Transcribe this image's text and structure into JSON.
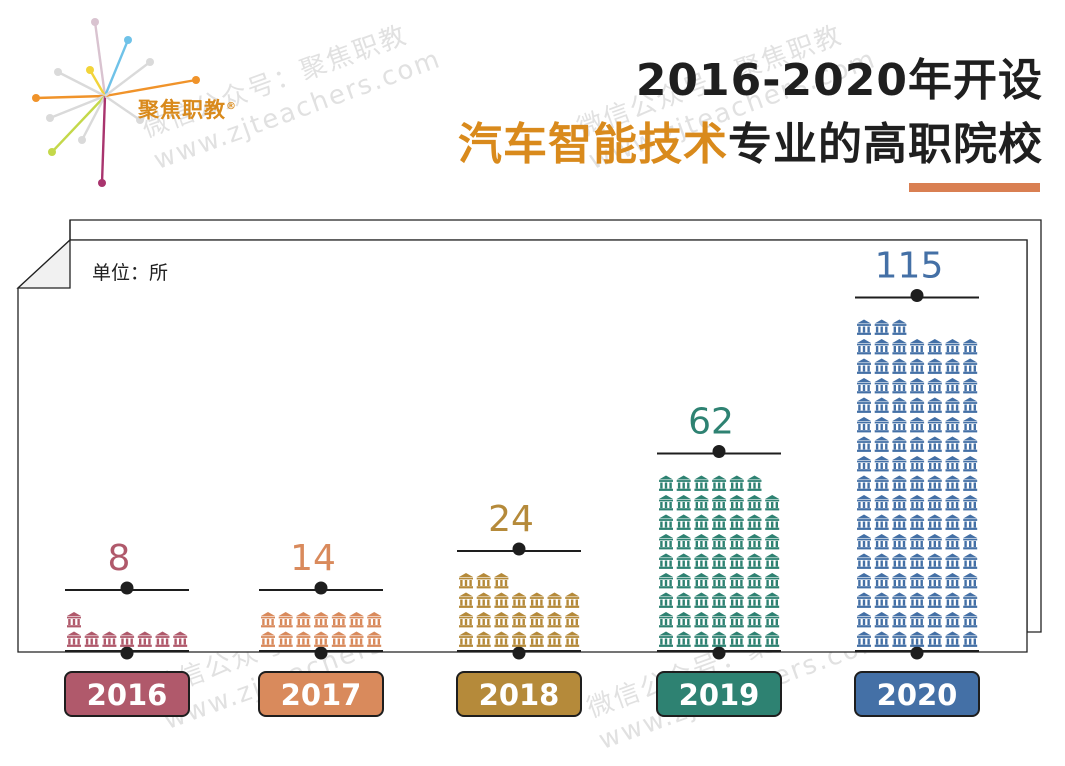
{
  "header": {
    "logo_text": "聚焦职教",
    "logo_mark": "®",
    "title_line1": "2016-2020年开设",
    "title_line2_highlight": "汽车智能技术",
    "title_line2_rest": "专业的高职院校"
  },
  "watermark": {
    "line1": "微信公众号：聚焦职教",
    "line2": "www.zjteachers.com"
  },
  "chart_data": {
    "type": "bar",
    "unit_label": "单位：所",
    "categories": [
      "2016",
      "2017",
      "2018",
      "2019",
      "2020"
    ],
    "values": [
      8,
      14,
      24,
      62,
      115
    ],
    "value_labels": [
      "8",
      "14",
      "24",
      "62",
      "115"
    ],
    "colors": [
      "#b0596b",
      "#d98a5c",
      "#b58a3a",
      "#2e8272",
      "#4470a6"
    ],
    "icon": "school-building-icon",
    "grid": false,
    "legend": "none"
  }
}
